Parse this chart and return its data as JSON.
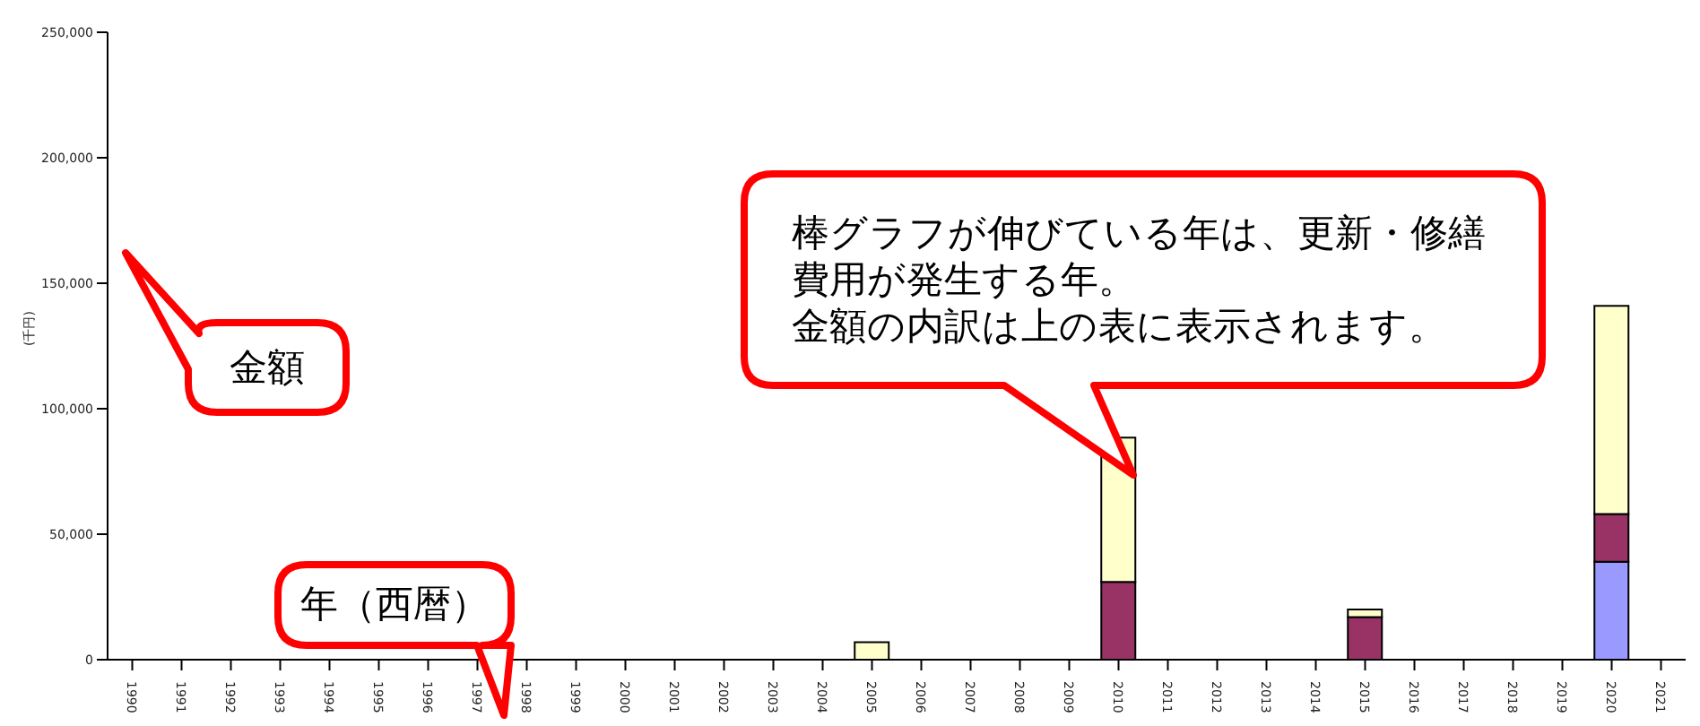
{
  "chart_data": {
    "type": "bar",
    "stacked": true,
    "ylabel": "(千円)",
    "categories": [
      "1990",
      "1991",
      "1992",
      "1993",
      "1994",
      "1995",
      "1996",
      "1997",
      "1998",
      "1999",
      "2000",
      "2001",
      "2002",
      "2003",
      "2004",
      "2005",
      "2006",
      "2007",
      "2008",
      "2009",
      "2010",
      "2011",
      "2012",
      "2013",
      "2014",
      "2015",
      "2016",
      "2017",
      "2018",
      "2019",
      "2020",
      "2021"
    ],
    "series": [
      {
        "color": "#9999ff",
        "values": [
          null,
          null,
          null,
          null,
          null,
          null,
          null,
          null,
          null,
          null,
          null,
          null,
          null,
          null,
          null,
          null,
          null,
          null,
          null,
          null,
          null,
          null,
          null,
          null,
          null,
          null,
          null,
          null,
          null,
          null,
          39000,
          null
        ]
      },
      {
        "color": "#993366",
        "values": [
          null,
          null,
          null,
          null,
          null,
          null,
          null,
          null,
          null,
          null,
          null,
          null,
          null,
          null,
          null,
          null,
          null,
          null,
          null,
          null,
          31000,
          null,
          null,
          null,
          null,
          17000,
          null,
          null,
          null,
          null,
          19000,
          null
        ]
      },
      {
        "color": "#ffffcc",
        "values": [
          null,
          null,
          null,
          null,
          null,
          null,
          null,
          null,
          null,
          null,
          null,
          null,
          null,
          null,
          null,
          7000,
          null,
          null,
          null,
          null,
          57500,
          null,
          null,
          null,
          null,
          3000,
          null,
          null,
          null,
          null,
          83000,
          null
        ]
      }
    ],
    "ylim": [
      0,
      250000
    ],
    "yticks": [
      0,
      {
        "value": 50000,
        "label": "50,000"
      },
      {
        "value": 100000,
        "label": "100,000"
      },
      {
        "value": 150000,
        "label": "150,000"
      },
      {
        "value": 200000,
        "label": "200,000"
      },
      {
        "value": 250000,
        "label": "250,000"
      }
    ],
    "grid": false,
    "legend": false,
    "annotations": [
      "棒グラフが伸びている年は、更新・修繕費用が発生する年。",
      "金額の内訳は上の表に表示されます。",
      "金額",
      "年（西暦）"
    ]
  }
}
